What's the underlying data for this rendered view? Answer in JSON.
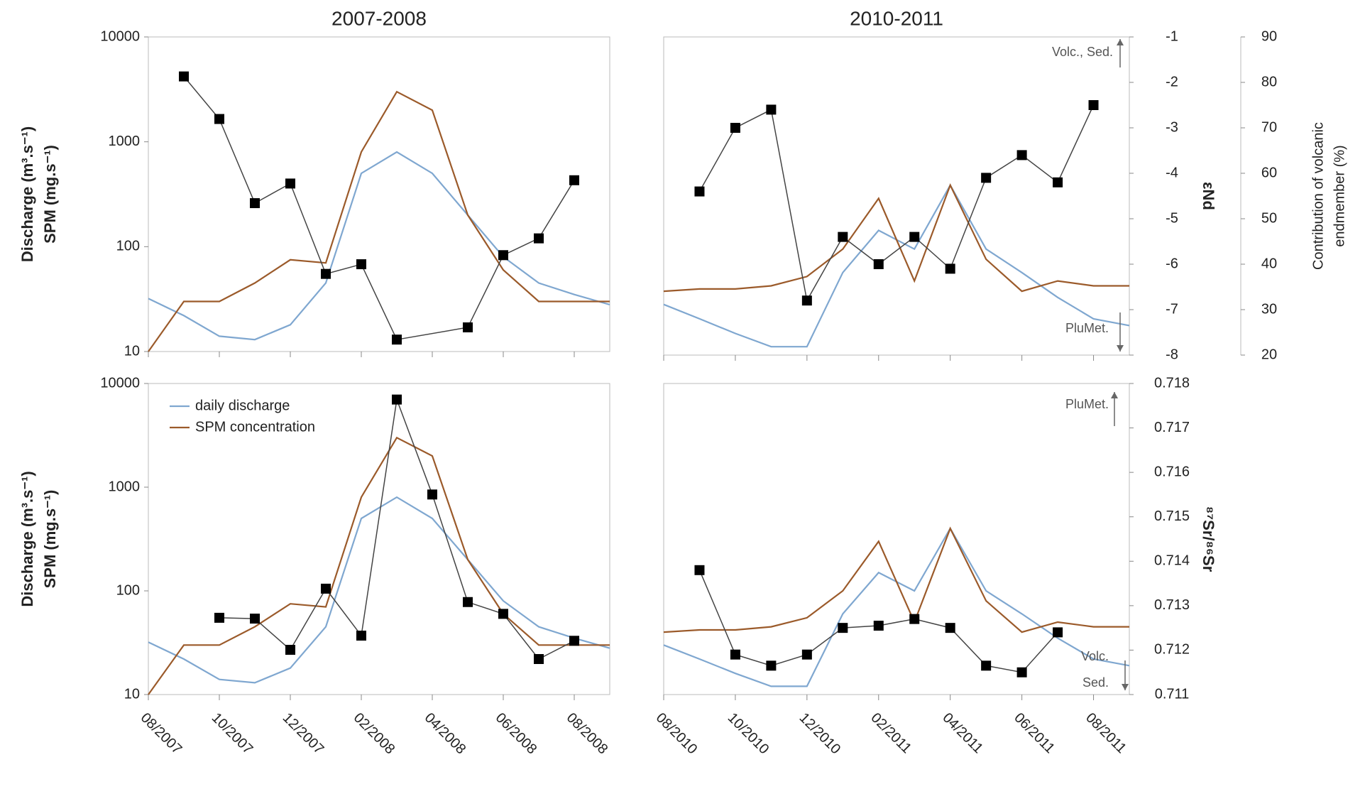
{
  "chart_data": [
    {
      "type": "line",
      "title": "2007-2008",
      "ylabel": [
        "Discharge (m³.s⁻¹)",
        "SPM (mg.s⁻¹)"
      ],
      "log_y": true,
      "ylim": [
        10,
        10000
      ],
      "yticks": [
        10,
        100,
        1000,
        10000
      ],
      "xlim": [
        "2007-08",
        "2008-09"
      ],
      "xticks": [
        {
          "value": "2007-08",
          "label": "08/2007"
        },
        {
          "value": "2007-10",
          "label": "10/2007"
        },
        {
          "value": "2007-12",
          "label": "12/2007"
        },
        {
          "value": "2008-02",
          "label": "02/2008"
        },
        {
          "value": "2008-04",
          "label": "04/2008"
        },
        {
          "value": "2008-06",
          "label": "06/2008"
        },
        {
          "value": "2008-08",
          "label": "08/2008"
        }
      ],
      "series": [
        {
          "color": "#7fa7d0",
          "x": [
            "2007-08",
            "2007-09",
            "2007-10",
            "2007-11",
            "2007-12",
            "2008-01",
            "2008-02",
            "2008-03",
            "2008-04",
            "2008-05",
            "2008-06",
            "2008-07",
            "2008-08",
            "2008-09"
          ],
          "values": [
            32,
            22,
            14,
            13,
            18,
            45,
            500,
            800,
            500,
            200,
            80,
            45,
            35,
            28
          ]
        },
        {
          "color": "#9b5a2a",
          "x": [
            "2007-08",
            "2007-09",
            "2007-10",
            "2007-11",
            "2007-12",
            "2008-01",
            "2008-02",
            "2008-03",
            "2008-04",
            "2008-05",
            "2008-06",
            "2008-07",
            "2008-08",
            "2008-09"
          ],
          "values": [
            10,
            30,
            30,
            45,
            75,
            70,
            800,
            3000,
            2000,
            200,
            60,
            30,
            30,
            30
          ]
        },
        {
          "color": "#000000",
          "marker": "square",
          "x": [
            "2007-09",
            "2007-10",
            "2007-11",
            "2007-12",
            "2008-01",
            "2008-02",
            "2008-03",
            "2008-05",
            "2008-06",
            "2008-07",
            "2008-08"
          ],
          "values": [
            4200,
            1650,
            260,
            400,
            55,
            68,
            13,
            17,
            83,
            120,
            430
          ]
        }
      ]
    },
    {
      "type": "line",
      "title": "2010-2011",
      "log_y": true,
      "ylim": [
        10,
        10000
      ],
      "xlim": [
        "2010-08",
        "2011-09"
      ],
      "xticks": [
        {
          "value": "2010-08",
          "label": "08/2010"
        },
        {
          "value": "2010-10",
          "label": "10/2010"
        },
        {
          "value": "2010-12",
          "label": "12/2010"
        },
        {
          "value": "2011-02",
          "label": "02/2011"
        },
        {
          "value": "2011-04",
          "label": "04/2011"
        },
        {
          "value": "2011-06",
          "label": "06/2011"
        },
        {
          "value": "2011-08",
          "label": "08/2011"
        }
      ],
      "y2label": "εNd",
      "y2lim": [
        -8,
        -1
      ],
      "y2ticks": [
        -8,
        -7,
        -6,
        -5,
        -4,
        -3,
        -2,
        -1
      ],
      "y3label": [
        "Contribution of volcanic",
        "endmember (%)"
      ],
      "y3lim": [
        20,
        90
      ],
      "y3ticks": [
        20,
        30,
        40,
        50,
        60,
        70,
        80,
        90
      ],
      "annotations": [
        "Volc., Sed.",
        "PluMet."
      ],
      "series": [
        {
          "color": "#7fa7d0",
          "x": [
            "2010-08",
            "2010-09",
            "2010-10",
            "2010-11",
            "2010-12",
            "2011-01",
            "2011-02",
            "2011-03",
            "2011-04",
            "2011-05",
            "2011-06",
            "2011-07",
            "2011-08",
            "2011-09"
          ],
          "values": [
            30,
            22,
            16,
            12,
            12,
            60,
            150,
            100,
            400,
            100,
            60,
            35,
            22,
            19
          ]
        },
        {
          "color": "#9b5a2a",
          "x": [
            "2010-08",
            "2010-09",
            "2010-10",
            "2010-11",
            "2010-12",
            "2011-01",
            "2011-02",
            "2011-03",
            "2011-04",
            "2011-05",
            "2011-06",
            "2011-07",
            "2011-08",
            "2011-09"
          ],
          "values": [
            40,
            42,
            42,
            45,
            55,
            100,
            300,
            50,
            400,
            80,
            40,
            50,
            45,
            45
          ]
        },
        {
          "color": "#000000",
          "marker": "square",
          "axis": "y2",
          "x": [
            "2010-09",
            "2010-10",
            "2010-11",
            "2010-12",
            "2011-01",
            "2011-02",
            "2011-03",
            "2011-04",
            "2011-05",
            "2011-06",
            "2011-07",
            "2011-08"
          ],
          "values": [
            -4.4,
            -3,
            -2.6,
            -6.8,
            -5.4,
            -6,
            -5.4,
            -6.1,
            -4.1,
            -3.6,
            -4.2,
            -2.5
          ]
        }
      ]
    },
    {
      "type": "line",
      "ylabel": [
        "Discharge (m³.s⁻¹)",
        "SPM (mg.s⁻¹)"
      ],
      "log_y": true,
      "legend": "upper left",
      "ylim": [
        10,
        10000
      ],
      "yticks": [
        10,
        100,
        1000,
        10000
      ],
      "xlim": [
        "2007-08",
        "2008-09"
      ],
      "xticks": [
        {
          "value": "2007-08",
          "label": "08/2007"
        },
        {
          "value": "2007-10",
          "label": "10/2007"
        },
        {
          "value": "2007-12",
          "label": "12/2007"
        },
        {
          "value": "2008-02",
          "label": "02/2008"
        },
        {
          "value": "2008-04",
          "label": "04/2008"
        },
        {
          "value": "2008-06",
          "label": "06/2008"
        },
        {
          "value": "2008-08",
          "label": "08/2008"
        }
      ],
      "series": [
        {
          "name": "daily discharge",
          "color": "#7fa7d0",
          "x": [
            "2007-08",
            "2007-09",
            "2007-10",
            "2007-11",
            "2007-12",
            "2008-01",
            "2008-02",
            "2008-03",
            "2008-04",
            "2008-05",
            "2008-06",
            "2008-07",
            "2008-08",
            "2008-09"
          ],
          "values": [
            32,
            22,
            14,
            13,
            18,
            45,
            500,
            800,
            500,
            200,
            80,
            45,
            35,
            28
          ]
        },
        {
          "name": "SPM concentration",
          "color": "#9b5a2a",
          "x": [
            "2007-08",
            "2007-09",
            "2007-10",
            "2007-11",
            "2007-12",
            "2008-01",
            "2008-02",
            "2008-03",
            "2008-04",
            "2008-05",
            "2008-06",
            "2008-07",
            "2008-08",
            "2008-09"
          ],
          "values": [
            10,
            30,
            30,
            45,
            75,
            70,
            800,
            3000,
            2000,
            200,
            60,
            30,
            30,
            30
          ]
        },
        {
          "color": "#000000",
          "marker": "square",
          "x": [
            "2007-10",
            "2007-11",
            "2007-12",
            "2008-01",
            "2008-02",
            "2008-03",
            "2008-04",
            "2008-05",
            "2008-06",
            "2008-07",
            "2008-08"
          ],
          "values": [
            55,
            54,
            27,
            105,
            37,
            7000,
            850,
            78,
            60,
            22,
            33
          ]
        }
      ]
    },
    {
      "type": "line",
      "log_y": true,
      "ylim": [
        10,
        10000
      ],
      "xlim": [
        "2010-08",
        "2011-09"
      ],
      "xticks": [
        {
          "value": "2010-08",
          "label": "08/2010"
        },
        {
          "value": "2010-10",
          "label": "10/2010"
        },
        {
          "value": "2010-12",
          "label": "12/2010"
        },
        {
          "value": "2011-02",
          "label": "02/2011"
        },
        {
          "value": "2011-04",
          "label": "04/2011"
        },
        {
          "value": "2011-06",
          "label": "06/2011"
        },
        {
          "value": "2011-08",
          "label": "08/2011"
        }
      ],
      "y2label": "⁸⁷Sr/⁸⁶Sr",
      "y2lim": [
        0.711,
        0.718
      ],
      "y2ticks": [
        0.711,
        0.712,
        0.713,
        0.714,
        0.715,
        0.716,
        0.717,
        0.718
      ],
      "annotations": [
        "PluMet.",
        "Volc.",
        "Sed."
      ],
      "series": [
        {
          "color": "#7fa7d0",
          "x": [
            "2010-08",
            "2010-09",
            "2010-10",
            "2010-11",
            "2010-12",
            "2011-01",
            "2011-02",
            "2011-03",
            "2011-04",
            "2011-05",
            "2011-06",
            "2011-07",
            "2011-08",
            "2011-09"
          ],
          "values": [
            30,
            22,
            16,
            12,
            12,
            60,
            150,
            100,
            400,
            100,
            60,
            35,
            22,
            19
          ]
        },
        {
          "color": "#9b5a2a",
          "x": [
            "2010-08",
            "2010-09",
            "2010-10",
            "2010-11",
            "2010-12",
            "2011-01",
            "2011-02",
            "2011-03",
            "2011-04",
            "2011-05",
            "2011-06",
            "2011-07",
            "2011-08",
            "2011-09"
          ],
          "values": [
            40,
            42,
            42,
            45,
            55,
            100,
            300,
            50,
            400,
            80,
            40,
            50,
            45,
            45
          ]
        },
        {
          "color": "#000000",
          "marker": "square",
          "axis": "y2",
          "x": [
            "2010-09",
            "2010-10",
            "2010-11",
            "2010-12",
            "2011-01",
            "2011-02",
            "2011-03",
            "2011-04",
            "2011-05",
            "2011-06",
            "2011-07"
          ],
          "values": [
            0.7138,
            0.7119,
            0.71165,
            0.7119,
            0.7125,
            0.71255,
            0.7127,
            0.7125,
            0.71165,
            0.7115,
            0.7124
          ]
        }
      ]
    }
  ]
}
